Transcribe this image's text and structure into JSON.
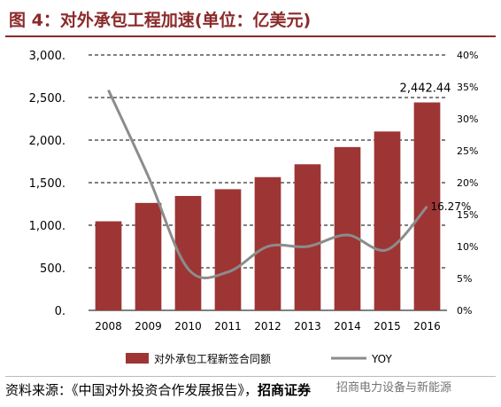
{
  "page": {
    "title": "图 4：对外承包工程加速(单位：亿美元)",
    "source_label": "资料来源：《中国对外投资合作发展报告》，",
    "source_strong": "招商证券",
    "watermark": "招商电力设备与新能源"
  },
  "chart_data": {
    "type": "bar+line",
    "categories": [
      "2008",
      "2009",
      "2010",
      "2011",
      "2012",
      "2013",
      "2014",
      "2015",
      "2016"
    ],
    "series": [
      {
        "name": "对外承包工程新签合同额",
        "type": "bar",
        "axis": "left",
        "values": [
          1046,
          1262,
          1344,
          1423,
          1565,
          1716,
          1918,
          2101,
          2442.44
        ]
      },
      {
        "name": "YOY",
        "type": "line",
        "axis": "right",
        "values": [
          34.5,
          21,
          6.5,
          6,
          10,
          10,
          11.8,
          9.5,
          16.27
        ]
      }
    ],
    "left_axis": {
      "ylim": [
        0,
        3000
      ],
      "ticks": [
        "0.",
        "500.",
        "1,000.",
        "1,500.",
        "2,000.",
        "2,500.",
        "3,000."
      ]
    },
    "right_axis": {
      "ylim": [
        0,
        40
      ],
      "ticks": [
        "0%",
        "5%",
        "10%",
        "15%",
        "20%",
        "25%",
        "30%",
        "35%",
        "40%"
      ]
    },
    "data_labels": {
      "bar_last": "2,442.44",
      "line_last": "16.27%"
    },
    "legend": {
      "position": "bottom",
      "bar_label": "对外承包工程新签合同额",
      "line_label": "YOY"
    },
    "grid": true,
    "colors": {
      "bar": "#9e3535",
      "line": "#8c8c8c",
      "title": "#8b2a2a",
      "grid": "#000000"
    }
  }
}
